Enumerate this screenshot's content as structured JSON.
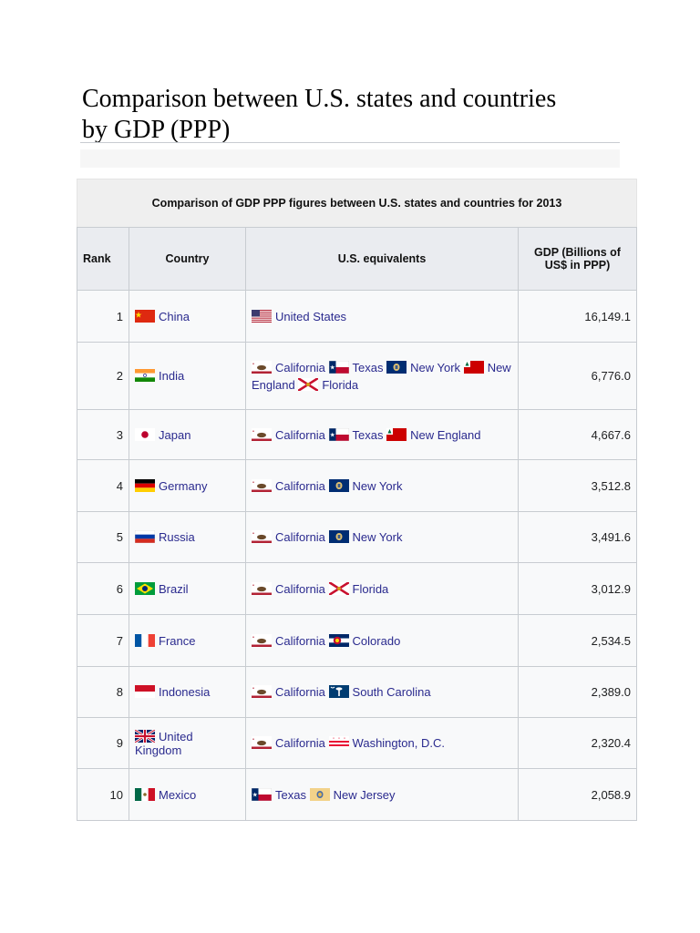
{
  "page": {
    "title_line1": "Comparison between U.S. states and countries",
    "title_line2": "by GDP (PPP)"
  },
  "table": {
    "caption": "Comparison of GDP PPP figures between U.S. states and countries for 2013",
    "headers": {
      "rank": "Rank",
      "country": "Country",
      "equivalents": "U.S. equivalents",
      "gdp_line1": "GDP (Billions of",
      "gdp_line2": "US$ in PPP)"
    },
    "rows": [
      {
        "rank": "1",
        "country": "China",
        "country_flag": "china-flag-icon",
        "equivalents": [
          {
            "name": "United States",
            "flag": "usa-flag-icon"
          }
        ],
        "gdp": "16,149.1"
      },
      {
        "rank": "2",
        "country": "India",
        "country_flag": "india-flag-icon",
        "equivalents": [
          {
            "name": "California",
            "flag": "california-flag-icon"
          },
          {
            "name": "Texas",
            "flag": "texas-flag-icon"
          },
          {
            "name": "New York",
            "flag": "new-york-flag-icon"
          },
          {
            "name": "New England",
            "flag": "new-england-flag-icon"
          },
          {
            "name": "Florida",
            "flag": "florida-flag-icon"
          }
        ],
        "gdp": "6,776.0"
      },
      {
        "rank": "3",
        "country": "Japan",
        "country_flag": "japan-flag-icon",
        "equivalents": [
          {
            "name": "California",
            "flag": "california-flag-icon"
          },
          {
            "name": "Texas",
            "flag": "texas-flag-icon"
          },
          {
            "name": "New England",
            "flag": "new-england-flag-icon"
          }
        ],
        "gdp": "4,667.6"
      },
      {
        "rank": "4",
        "country": "Germany",
        "country_flag": "germany-flag-icon",
        "equivalents": [
          {
            "name": "California",
            "flag": "california-flag-icon"
          },
          {
            "name": "New York",
            "flag": "new-york-flag-icon"
          }
        ],
        "gdp": "3,512.8"
      },
      {
        "rank": "5",
        "country": "Russia",
        "country_flag": "russia-flag-icon",
        "equivalents": [
          {
            "name": "California",
            "flag": "california-flag-icon"
          },
          {
            "name": "New York",
            "flag": "new-york-flag-icon"
          }
        ],
        "gdp": "3,491.6"
      },
      {
        "rank": "6",
        "country": "Brazil",
        "country_flag": "brazil-flag-icon",
        "equivalents": [
          {
            "name": "California",
            "flag": "california-flag-icon"
          },
          {
            "name": "Florida",
            "flag": "florida-flag-icon"
          }
        ],
        "gdp": "3,012.9"
      },
      {
        "rank": "7",
        "country": "France",
        "country_flag": "france-flag-icon",
        "equivalents": [
          {
            "name": "California",
            "flag": "california-flag-icon"
          },
          {
            "name": "Colorado",
            "flag": "colorado-flag-icon"
          }
        ],
        "gdp": "2,534.5"
      },
      {
        "rank": "8",
        "country": "Indonesia",
        "country_flag": "indonesia-flag-icon",
        "equivalents": [
          {
            "name": "California",
            "flag": "california-flag-icon"
          },
          {
            "name": "South Carolina",
            "flag": "south-carolina-flag-icon"
          }
        ],
        "gdp": "2,389.0"
      },
      {
        "rank": "9",
        "country": "United Kingdom",
        "country_flag": "uk-flag-icon",
        "equivalents": [
          {
            "name": "California",
            "flag": "california-flag-icon"
          },
          {
            "name": "Washington, D.C.",
            "flag": "dc-flag-icon"
          }
        ],
        "gdp": "2,320.4"
      },
      {
        "rank": "10",
        "country": "Mexico",
        "country_flag": "mexico-flag-icon",
        "equivalents": [
          {
            "name": "Texas",
            "flag": "texas-flag-icon"
          },
          {
            "name": "New Jersey",
            "flag": "new-jersey-flag-icon"
          }
        ],
        "gdp": "2,058.9"
      }
    ]
  },
  "colors": {
    "link": "#2a2a8e",
    "header_bg": "#eaecf0",
    "cell_bg": "#f8f9fa",
    "border": "#c8ccd1"
  }
}
